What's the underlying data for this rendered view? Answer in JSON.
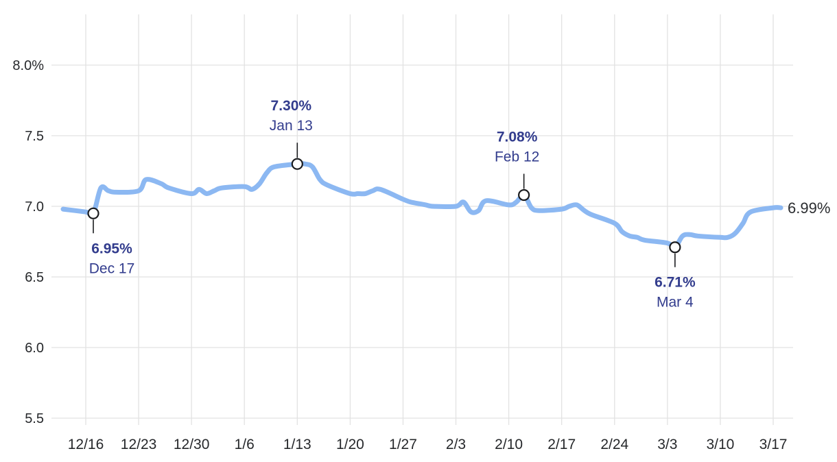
{
  "chart_data": {
    "type": "line",
    "title": "",
    "unit": "%",
    "ylim": [
      5.5,
      8.0
    ],
    "grid": true,
    "legend": "none",
    "y_ticks": [
      {
        "label": "8.0%",
        "value": 8.0
      },
      {
        "label": "7.5",
        "value": 7.5
      },
      {
        "label": "7.0",
        "value": 7.0
      },
      {
        "label": "6.5",
        "value": 6.5
      },
      {
        "label": "6.0",
        "value": 6.0
      },
      {
        "label": "5.5",
        "value": 5.5
      }
    ],
    "x_ticks": [
      {
        "label": "12/16",
        "day": 4
      },
      {
        "label": "12/23",
        "day": 11
      },
      {
        "label": "12/30",
        "day": 18
      },
      {
        "label": "1/6",
        "day": 25
      },
      {
        "label": "1/13",
        "day": 32
      },
      {
        "label": "1/20",
        "day": 39
      },
      {
        "label": "1/27",
        "day": 46
      },
      {
        "label": "2/3",
        "day": 53
      },
      {
        "label": "2/10",
        "day": 60
      },
      {
        "label": "2/17",
        "day": 67
      },
      {
        "label": "2/24",
        "day": 74
      },
      {
        "label": "3/3",
        "day": 81
      },
      {
        "label": "3/10",
        "day": 88
      },
      {
        "label": "3/17",
        "day": 95
      }
    ],
    "points": [
      {
        "date": "12/13",
        "day": 1,
        "value": 6.98
      },
      {
        "date": "12/16",
        "day": 4,
        "value": 6.96
      },
      {
        "date": "12/17",
        "day": 5,
        "value": 6.95
      },
      {
        "date": "12/18",
        "day": 6,
        "value": 7.13
      },
      {
        "date": "12/19",
        "day": 7,
        "value": 7.11
      },
      {
        "date": "12/20",
        "day": 8,
        "value": 7.1
      },
      {
        "date": "12/23",
        "day": 11,
        "value": 7.11
      },
      {
        "date": "12/24",
        "day": 12,
        "value": 7.19
      },
      {
        "date": "12/26",
        "day": 14,
        "value": 7.16
      },
      {
        "date": "12/27",
        "day": 15,
        "value": 7.13
      },
      {
        "date": "12/30",
        "day": 18,
        "value": 7.09
      },
      {
        "date": "12/31",
        "day": 19,
        "value": 7.12
      },
      {
        "date": "1/1",
        "day": 20,
        "value": 7.09
      },
      {
        "date": "1/2",
        "day": 21,
        "value": 7.11
      },
      {
        "date": "1/3",
        "day": 22,
        "value": 7.13
      },
      {
        "date": "1/6",
        "day": 25,
        "value": 7.14
      },
      {
        "date": "1/7",
        "day": 26,
        "value": 7.12
      },
      {
        "date": "1/8",
        "day": 27,
        "value": 7.16
      },
      {
        "date": "1/9",
        "day": 28,
        "value": 7.24
      },
      {
        "date": "1/10",
        "day": 29,
        "value": 7.28
      },
      {
        "date": "1/13",
        "day": 32,
        "value": 7.3
      },
      {
        "date": "1/14",
        "day": 33,
        "value": 7.3
      },
      {
        "date": "1/15",
        "day": 34,
        "value": 7.28
      },
      {
        "date": "1/16",
        "day": 35,
        "value": 7.19
      },
      {
        "date": "1/17",
        "day": 36,
        "value": 7.15
      },
      {
        "date": "1/20",
        "day": 39,
        "value": 7.09
      },
      {
        "date": "1/21",
        "day": 40,
        "value": 7.09
      },
      {
        "date": "1/22",
        "day": 41,
        "value": 7.09
      },
      {
        "date": "1/23",
        "day": 42,
        "value": 7.11
      },
      {
        "date": "1/24",
        "day": 43,
        "value": 7.12
      },
      {
        "date": "1/27",
        "day": 46,
        "value": 7.05
      },
      {
        "date": "1/28",
        "day": 47,
        "value": 7.03
      },
      {
        "date": "1/29",
        "day": 48,
        "value": 7.02
      },
      {
        "date": "1/30",
        "day": 49,
        "value": 7.01
      },
      {
        "date": "1/31",
        "day": 50,
        "value": 7.0
      },
      {
        "date": "2/3",
        "day": 53,
        "value": 7.0
      },
      {
        "date": "2/4",
        "day": 54,
        "value": 7.03
      },
      {
        "date": "2/5",
        "day": 55,
        "value": 6.96
      },
      {
        "date": "2/6",
        "day": 56,
        "value": 6.97
      },
      {
        "date": "2/7",
        "day": 57,
        "value": 7.04
      },
      {
        "date": "2/10",
        "day": 60,
        "value": 7.01
      },
      {
        "date": "2/11",
        "day": 61,
        "value": 7.03
      },
      {
        "date": "2/12",
        "day": 62,
        "value": 7.08
      },
      {
        "date": "2/13",
        "day": 63,
        "value": 6.99
      },
      {
        "date": "2/14",
        "day": 64,
        "value": 6.97
      },
      {
        "date": "2/17",
        "day": 67,
        "value": 6.98
      },
      {
        "date": "2/18",
        "day": 68,
        "value": 7.0
      },
      {
        "date": "2/19",
        "day": 69,
        "value": 7.01
      },
      {
        "date": "2/20",
        "day": 70,
        "value": 6.97
      },
      {
        "date": "2/21",
        "day": 71,
        "value": 6.94
      },
      {
        "date": "2/24",
        "day": 74,
        "value": 6.88
      },
      {
        "date": "2/25",
        "day": 75,
        "value": 6.82
      },
      {
        "date": "2/26",
        "day": 76,
        "value": 6.79
      },
      {
        "date": "2/27",
        "day": 77,
        "value": 6.78
      },
      {
        "date": "2/28",
        "day": 78,
        "value": 6.76
      },
      {
        "date": "3/3",
        "day": 81,
        "value": 6.74
      },
      {
        "date": "3/4",
        "day": 82,
        "value": 6.71
      },
      {
        "date": "3/5",
        "day": 83,
        "value": 6.79
      },
      {
        "date": "3/6",
        "day": 84,
        "value": 6.8
      },
      {
        "date": "3/7",
        "day": 85,
        "value": 6.79
      },
      {
        "date": "3/10",
        "day": 88,
        "value": 6.78
      },
      {
        "date": "3/11",
        "day": 89,
        "value": 6.78
      },
      {
        "date": "3/12",
        "day": 90,
        "value": 6.81
      },
      {
        "date": "3/13",
        "day": 91,
        "value": 6.88
      },
      {
        "date": "3/14",
        "day": 92,
        "value": 6.96
      },
      {
        "date": "3/17",
        "day": 95,
        "value": 6.99
      },
      {
        "date": "3/18",
        "day": 96,
        "value": 6.99
      }
    ],
    "annotations": [
      {
        "value_label": "6.95%",
        "date_label": "Dec 17",
        "day": 5,
        "value": 6.95,
        "side": "below",
        "label_dx": 27
      },
      {
        "value_label": "7.30%",
        "date_label": "Jan 13",
        "day": 32,
        "value": 7.3,
        "side": "above",
        "label_dx": -9
      },
      {
        "value_label": "7.08%",
        "date_label": "Feb 12",
        "day": 62,
        "value": 7.08,
        "side": "above",
        "label_dx": -10
      },
      {
        "value_label": "6.71%",
        "date_label": "Mar 4",
        "day": 82,
        "value": 6.71,
        "side": "below",
        "label_dx": 0
      }
    ],
    "end_label": "6.99%",
    "colors": {
      "line": "#8cb8f2",
      "annotation_text": "#323c8d",
      "axis_text": "#26282b",
      "grid": "#e2e2e2",
      "marker_stroke": "#1a1b1e",
      "marker_fill": "#ffffff",
      "end_label_text": "#2b2d30"
    }
  }
}
